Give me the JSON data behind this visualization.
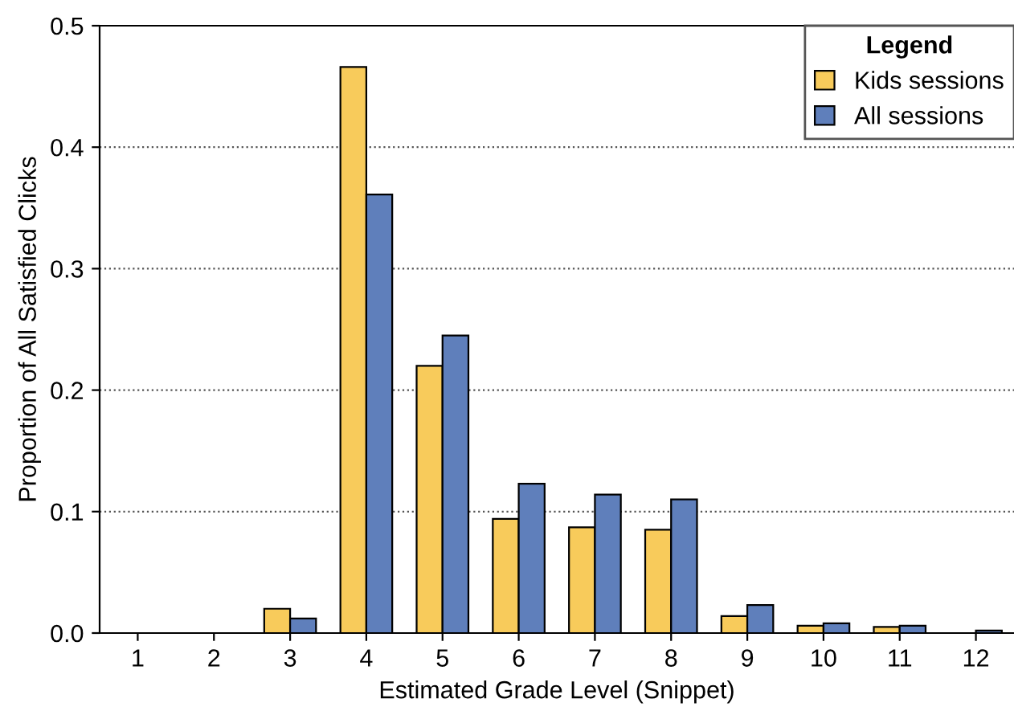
{
  "chart_data": {
    "type": "bar",
    "xlabel": "Estimated Grade Level (Snippet)",
    "ylabel": "Proportion of All Satisfied Clicks",
    "legend_title": "Legend",
    "categories": [
      "1",
      "2",
      "3",
      "4",
      "5",
      "6",
      "7",
      "8",
      "9",
      "10",
      "11",
      "12"
    ],
    "series": [
      {
        "name": "Kids sessions",
        "color": "#f8cb5b",
        "values": [
          null,
          null,
          0.02,
          0.466,
          0.22,
          0.094,
          0.087,
          0.085,
          0.014,
          0.006,
          0.005,
          null
        ]
      },
      {
        "name": "All sessions",
        "color": "#5f7fbb",
        "values": [
          null,
          null,
          0.012,
          0.361,
          0.245,
          0.123,
          0.114,
          0.11,
          0.023,
          0.008,
          0.006,
          0.002
        ]
      }
    ],
    "ylim": [
      0,
      0.5
    ],
    "yticks": [
      {
        "value": 0,
        "label": "0.0"
      },
      0.1,
      0.2,
      0.3,
      0.4,
      0.5
    ],
    "grid": "y",
    "legend": "top right"
  }
}
